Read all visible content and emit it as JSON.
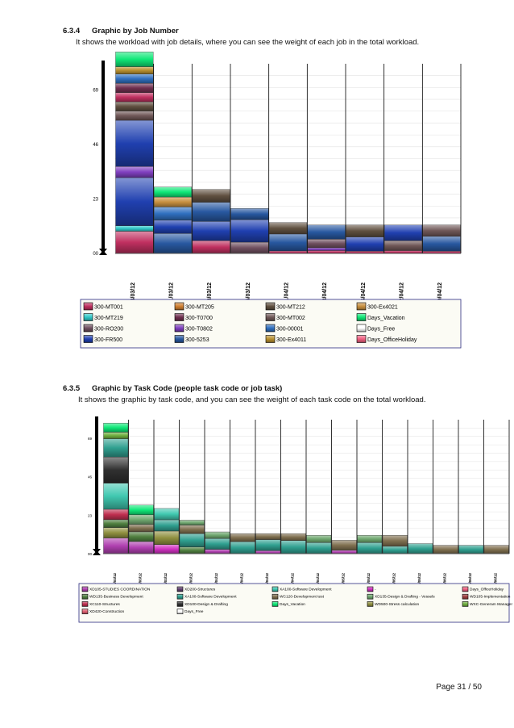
{
  "section1": {
    "number": "6.3.4",
    "title": "Graphic by Job Number",
    "description": "It shows the workload with job details, where you can see the weight of each job in the total workload."
  },
  "section2": {
    "number": "6.3.5",
    "title": "Graphic by Task Code (people task code or job task)",
    "description": "It shows the graphic by task code, and you can see the weight of each task code on the total workload."
  },
  "footer": {
    "page_label": "Page",
    "page_number": "31",
    "separator": "/",
    "total_pages": "50"
  },
  "chart_data": [
    {
      "type": "bar",
      "stacked": true,
      "title": "",
      "xlabel": "",
      "ylabel": "",
      "ylim": [
        0,
        80
      ],
      "yticks": [
        "00",
        "23",
        "46",
        "69"
      ],
      "categories": [
        "04/03/12",
        "11/03/12",
        "18/03/12",
        "25/03/12",
        "01/04/12",
        "08/04/12",
        "15/04/12",
        "22/04/12",
        "29/04/12"
      ],
      "totals": [
        78,
        28,
        27,
        19,
        13,
        12,
        12,
        12,
        12
      ],
      "legend_position": "bottom",
      "series": [
        {
          "name": "300-MT001",
          "color": "#c03060"
        },
        {
          "name": "300-MT205",
          "color": "#d08030"
        },
        {
          "name": "300-MT212",
          "color": "#605040"
        },
        {
          "name": "300-Ex4021",
          "color": "#c89040"
        },
        {
          "name": "300-MT219",
          "color": "#30c8c8"
        },
        {
          "name": "300-T0700",
          "color": "#703050"
        },
        {
          "name": "300-MT002",
          "color": "#705858"
        },
        {
          "name": "Days_Vacation",
          "color": "#10e878"
        },
        {
          "name": "300-RO200",
          "color": "#705060"
        },
        {
          "name": "300-T0802",
          "color": "#8040c0"
        },
        {
          "name": "300-00001",
          "color": "#3070c0"
        },
        {
          "name": "Days_Free",
          "color": "#ffffff"
        },
        {
          "name": "300-FR500",
          "color": "#2040b0"
        },
        {
          "name": "300-5253",
          "color": "#2858a0"
        },
        {
          "name": "300-Ex4011",
          "color": "#b89030"
        },
        {
          "name": "Days_OfficeHoliday",
          "color": "#f06080"
        }
      ]
    },
    {
      "type": "bar",
      "stacked": true,
      "title": "",
      "xlabel": "",
      "ylabel": "",
      "ylim": [
        0,
        80
      ],
      "yticks": [
        "00",
        "23",
        "46",
        "69"
      ],
      "categories": [
        "04/03/12",
        "11/03/12",
        "18/03/12",
        "25/03/12",
        "01/04/12",
        "08/04/12",
        "15/04/12",
        "22/04/12",
        "29/04/12",
        "06/05/12",
        "13/05/12",
        "20/05/12",
        "27/05/12",
        "03/06/12",
        "10/06/12",
        "17/06/12"
      ],
      "totals": [
        78,
        29,
        27,
        20,
        13,
        12,
        12,
        12,
        11,
        8,
        11,
        11,
        6,
        5,
        5,
        5
      ],
      "legend_position": "bottom",
      "series": [
        {
          "name": "XD105-STUDIES COORDINATION",
          "color": "#b040b0"
        },
        {
          "name": "XD200-Structures",
          "color": "#604070"
        },
        {
          "name": "XA100-Software Development",
          "color": "#40c8b0"
        },
        {
          "name": "-",
          "color": "#d030c0"
        },
        {
          "name": "Days_OfficeHoliday",
          "color": "#f06080"
        },
        {
          "name": "WD135-Business Development",
          "color": "#508040"
        },
        {
          "name": "XA100-Software Development",
          "color": "#30a090"
        },
        {
          "name": "WC120-Development test",
          "color": "#807050"
        },
        {
          "name": "XD135-Design & Drafting - Vessels",
          "color": "#70a870"
        },
        {
          "name": "WD105-Implementation",
          "color": "#a04040"
        },
        {
          "name": "XC110-Structures",
          "color": "#c03050"
        },
        {
          "name": "XD100-Design & Drafting",
          "color": "#303030"
        },
        {
          "name": "Days_Vacation",
          "color": "#10e878"
        },
        {
          "name": "WD500-Stress calculation",
          "color": "#909040"
        },
        {
          "name": "WXC-Generam Manager",
          "color": "#70b040"
        },
        {
          "name": "XD420-Construction",
          "color": "#e06070"
        },
        {
          "name": "Days_Free",
          "color": "#ffffff"
        }
      ]
    }
  ]
}
